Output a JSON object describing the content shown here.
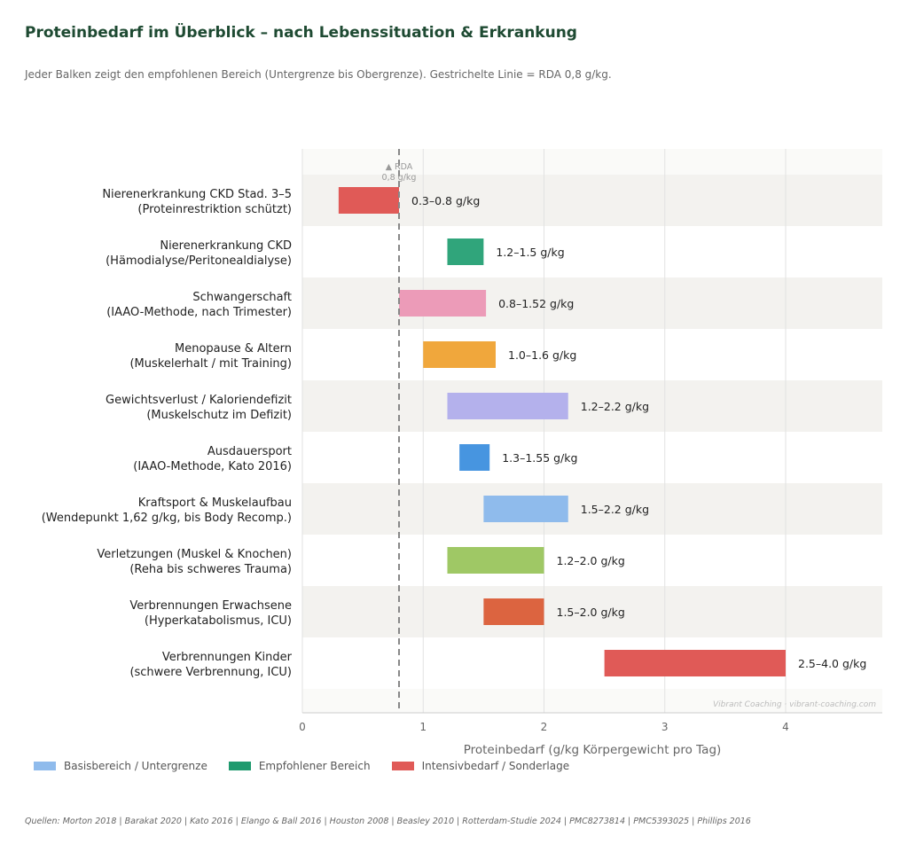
{
  "header": {
    "title": "Proteinbedarf im Überblick – nach Lebenssituation & Erkrankung",
    "subtitle": "Jeder Balken zeigt den empfohlenen Bereich (Untergrenze bis Obergrenze).  Gestrichelte Linie = RDA 0,8 g/kg."
  },
  "chart_data": {
    "type": "bar",
    "orientation": "horizontal-range",
    "xlabel": "Proteinbedarf (g/kg Körpergewicht pro Tag)",
    "xlim": [
      0,
      4.8
    ],
    "xticks": [
      0,
      1,
      2,
      3,
      4
    ],
    "grid": true,
    "reference_line": {
      "x": 0.8,
      "label_line1": "▲ RDA",
      "label_line2": "0,8 g/kg",
      "color": "#888888",
      "style": "dashed"
    },
    "watermark": "Vibrant Coaching · vibrant-coaching.com",
    "categories": [
      {
        "line1": "Nierenerkrankung CKD Stad. 3–5",
        "line2": "(Proteinrestriktion schützt)",
        "low": 0.3,
        "high": 0.8,
        "label": "0.3–0.8 g/kg",
        "color": "#e05a57"
      },
      {
        "line1": "Nierenerkrankung CKD",
        "line2": "(Hämodialyse/Peritonealdialyse)",
        "low": 1.2,
        "high": 1.5,
        "label": "1.2–1.5 g/kg",
        "color": "#30a57b"
      },
      {
        "line1": "Schwangerschaft",
        "line2": "(IAAO-Methode, nach Trimester)",
        "low": 0.8,
        "high": 1.52,
        "label": "0.8–1.52 g/kg",
        "color": "#ec9bb8"
      },
      {
        "line1": "Menopause & Altern",
        "line2": "(Muskelerhalt / mit Training)",
        "low": 1.0,
        "high": 1.6,
        "label": "1.0–1.6 g/kg",
        "color": "#f0a73c"
      },
      {
        "line1": "Gewichtsverlust / Kaloriendefizit",
        "line2": "(Muskelschutz im Defizit)",
        "low": 1.2,
        "high": 2.2,
        "label": "1.2–2.2 g/kg",
        "color": "#b4b1ec"
      },
      {
        "line1": "Ausdauersport",
        "line2": "(IAAO-Methode, Kato 2016)",
        "low": 1.3,
        "high": 1.55,
        "label": "1.3–1.55 g/kg",
        "color": "#4795e0"
      },
      {
        "line1": "Kraftsport & Muskelaufbau",
        "line2": "(Wendepunkt 1,62 g/kg, bis Body Recomp.)",
        "low": 1.5,
        "high": 2.2,
        "label": "1.5–2.2 g/kg",
        "color": "#8fbbec"
      },
      {
        "line1": "Verletzungen (Muskel & Knochen)",
        "line2": "(Reha bis schweres Trauma)",
        "low": 1.2,
        "high": 2.0,
        "label": "1.2–2.0 g/kg",
        "color": "#9fc865"
      },
      {
        "line1": "Verbrennungen Erwachsene",
        "line2": "(Hyperkatabolismus, ICU)",
        "low": 1.5,
        "high": 2.0,
        "label": "1.5–2.0 g/kg",
        "color": "#dc6440"
      },
      {
        "line1": "Verbrennungen Kinder",
        "line2": "(schwere Verbrennung, ICU)",
        "low": 2.5,
        "high": 4.0,
        "label": "2.5–4.0 g/kg",
        "color": "#e05a57"
      }
    ],
    "legend": [
      {
        "label": "Basisbereich / Untergrenze",
        "color": "#8fbbec"
      },
      {
        "label": "Empfohlener Bereich",
        "color": "#1f9a6e"
      },
      {
        "label": "Intensivbedarf / Sonderlage",
        "color": "#e05a57"
      }
    ],
    "legend_placement": "bottom-left"
  },
  "footer": {
    "sources": "Quellen: Morton 2018 | Barakat 2020 | Kato 2016 | Elango & Ball 2016 | Houston 2008 | Beasley 2010 | Rotterdam-Studie 2024 | PMC8273814 | PMC5393025 | Phillips 2016"
  }
}
